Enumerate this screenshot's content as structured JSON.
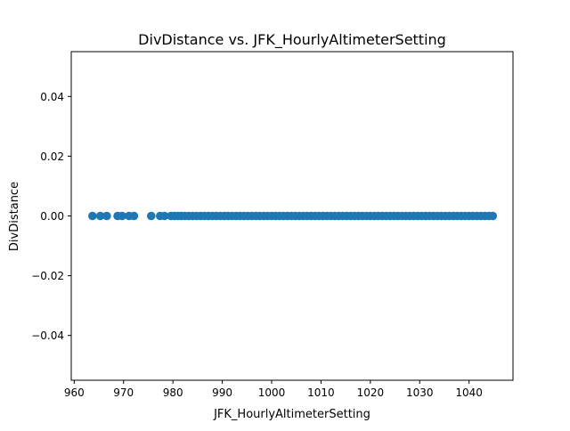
{
  "chart_data": {
    "type": "scatter",
    "title": "DivDistance vs. JFK_HourlyAltimeterSetting",
    "xlabel": "JFK_HourlyAltimeterSetting",
    "ylabel": "DivDistance",
    "xlim": [
      959.4,
      1048.9
    ],
    "ylim": [
      -0.055,
      0.055
    ],
    "xticks": [
      960,
      970,
      980,
      990,
      1000,
      1010,
      1020,
      1030,
      1040
    ],
    "xtick_labels": [
      "960",
      "970",
      "980",
      "990",
      "1000",
      "1010",
      "1020",
      "1030",
      "1040"
    ],
    "yticks": [
      -0.04,
      -0.02,
      0.0,
      0.02,
      0.04
    ],
    "ytick_labels": [
      "−0.04",
      "−0.02",
      "0.00",
      "0.02",
      "0.04"
    ],
    "grid": false,
    "legend": "none",
    "marker_color": "#1f77b4",
    "points": {
      "x": [
        963.7,
        965.3,
        966.6,
        968.8,
        969.7,
        971.1,
        972.1,
        975.6,
        977.4,
        978.3,
        979.6,
        980.3,
        981.0,
        981.7,
        982.4,
        983.2,
        984.0,
        984.8,
        985.6,
        986.4,
        987.2,
        988.0,
        988.8,
        989.6,
        990.4,
        991.2,
        992.0,
        992.8,
        993.6,
        994.4,
        995.2,
        996.0,
        996.8,
        997.6,
        998.4,
        999.2,
        1000.0,
        1000.8,
        1001.6,
        1002.4,
        1003.2,
        1004.0,
        1004.8,
        1005.6,
        1006.4,
        1007.2,
        1008.0,
        1008.8,
        1009.6,
        1010.4,
        1011.2,
        1012.0,
        1012.8,
        1013.6,
        1014.4,
        1015.2,
        1016.0,
        1016.8,
        1017.6,
        1018.4,
        1019.2,
        1020.0,
        1020.8,
        1021.6,
        1022.4,
        1023.2,
        1024.0,
        1024.8,
        1025.6,
        1026.4,
        1027.2,
        1028.0,
        1028.8,
        1029.6,
        1030.4,
        1031.2,
        1032.0,
        1032.8,
        1033.6,
        1034.4,
        1035.2,
        1036.0,
        1036.8,
        1037.6,
        1038.4,
        1039.2,
        1040.0,
        1040.8,
        1041.6,
        1042.4,
        1043.2,
        1044.0,
        1044.8
      ],
      "y": [
        0,
        0,
        0,
        0,
        0,
        0,
        0,
        0,
        0,
        0,
        0,
        0,
        0,
        0,
        0,
        0,
        0,
        0,
        0,
        0,
        0,
        0,
        0,
        0,
        0,
        0,
        0,
        0,
        0,
        0,
        0,
        0,
        0,
        0,
        0,
        0,
        0,
        0,
        0,
        0,
        0,
        0,
        0,
        0,
        0,
        0,
        0,
        0,
        0,
        0,
        0,
        0,
        0,
        0,
        0,
        0,
        0,
        0,
        0,
        0,
        0,
        0,
        0,
        0,
        0,
        0,
        0,
        0,
        0,
        0,
        0,
        0,
        0,
        0,
        0,
        0,
        0,
        0,
        0,
        0,
        0,
        0,
        0,
        0,
        0,
        0,
        0,
        0,
        0,
        0,
        0,
        0,
        0
      ]
    }
  }
}
